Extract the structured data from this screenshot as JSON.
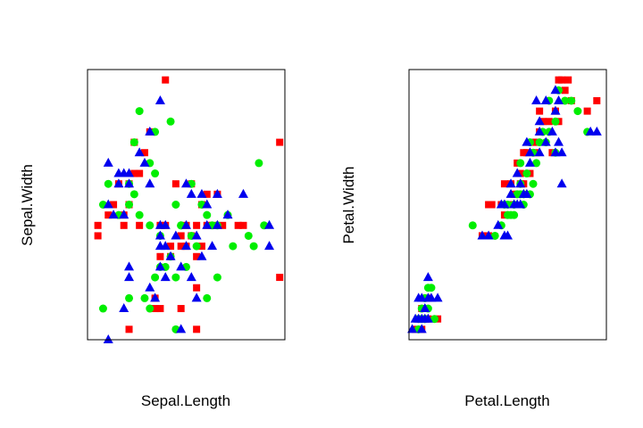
{
  "colors": {
    "red": "#ff0000",
    "green": "#00ee00",
    "blue": "#0000ee"
  },
  "chart_data": [
    {
      "type": "scatter",
      "xlabel": "Sepal.Length",
      "ylabel": "Sepal.Width",
      "xlim": [
        4.2,
        8.0
      ],
      "ylim": [
        1.9,
        4.5
      ],
      "series": [
        {
          "color": "red",
          "shape": "square",
          "points": [
            [
              5.7,
              4.4
            ],
            [
              7.9,
              3.8
            ],
            [
              5.4,
              3.9
            ],
            [
              5.1,
              3.8
            ],
            [
              5.2,
              3.5
            ],
            [
              4.8,
              3.4
            ],
            [
              5.0,
              3.4
            ],
            [
              5.9,
              3.4
            ],
            [
              6.2,
              3.4
            ],
            [
              6.7,
              3.3
            ],
            [
              6.5,
              3.3
            ],
            [
              5.3,
              3.7
            ],
            [
              6.4,
              3.2
            ],
            [
              5.0,
              3.2
            ],
            [
              4.6,
              3.1
            ],
            [
              4.9,
              3.1
            ],
            [
              6.1,
              3.0
            ],
            [
              6.3,
              3.0
            ],
            [
              6.5,
              3.0
            ],
            [
              4.4,
              3.0
            ],
            [
              4.4,
              2.9
            ],
            [
              5.7,
              3.0
            ],
            [
              6.0,
              2.9
            ],
            [
              6.2,
              2.9
            ],
            [
              6.8,
              3.0
            ],
            [
              7.1,
              3.0
            ],
            [
              5.8,
              2.8
            ],
            [
              6.0,
              2.8
            ],
            [
              6.4,
              2.8
            ],
            [
              7.2,
              3.0
            ],
            [
              5.6,
              2.7
            ],
            [
              5.8,
              2.7
            ],
            [
              6.3,
              2.7
            ],
            [
              7.9,
              2.5
            ],
            [
              6.3,
              2.4
            ],
            [
              5.5,
              2.3
            ],
            [
              5.5,
              2.2
            ],
            [
              5.0,
              2.0
            ],
            [
              6.3,
              2.0
            ],
            [
              6.0,
              2.2
            ],
            [
              4.9,
              3.0
            ],
            [
              5.2,
              3.0
            ],
            [
              4.7,
              3.2
            ],
            [
              5.1,
              3.5
            ],
            [
              5.6,
              3.0
            ],
            [
              6.6,
              3.0
            ],
            [
              5.6,
              2.2
            ],
            [
              6.1,
              2.8
            ]
          ]
        },
        {
          "color": "green",
          "shape": "circle",
          "points": [
            [
              5.2,
              4.1
            ],
            [
              5.8,
              4.0
            ],
            [
              5.5,
              3.9
            ],
            [
              5.1,
              3.8
            ],
            [
              7.5,
              3.6
            ],
            [
              5.4,
              3.6
            ],
            [
              4.6,
              3.4
            ],
            [
              5.0,
              3.4
            ],
            [
              5.5,
              3.5
            ],
            [
              5.1,
              3.3
            ],
            [
              6.2,
              3.4
            ],
            [
              4.5,
              3.2
            ],
            [
              6.4,
              3.2
            ],
            [
              5.0,
              3.2
            ],
            [
              4.8,
              3.1
            ],
            [
              6.5,
              3.1
            ],
            [
              6.9,
              3.1
            ],
            [
              5.2,
              3.1
            ],
            [
              5.4,
              3.0
            ],
            [
              6.0,
              3.0
            ],
            [
              6.7,
              3.0
            ],
            [
              7.3,
              2.9
            ],
            [
              7.6,
              3.0
            ],
            [
              5.6,
              2.9
            ],
            [
              6.2,
              2.9
            ],
            [
              5.8,
              2.7
            ],
            [
              6.3,
              2.8
            ],
            [
              7.0,
              2.8
            ],
            [
              7.4,
              2.8
            ],
            [
              5.6,
              2.6
            ],
            [
              6.1,
              2.6
            ],
            [
              6.7,
              2.5
            ],
            [
              5.9,
              2.5
            ],
            [
              5.5,
              2.5
            ],
            [
              5.0,
              2.3
            ],
            [
              5.3,
              2.3
            ],
            [
              6.5,
              2.3
            ],
            [
              4.5,
              2.2
            ],
            [
              5.4,
              2.2
            ],
            [
              5.9,
              2.0
            ],
            [
              6.0,
              3.0
            ],
            [
              5.9,
              3.2
            ],
            [
              6.6,
              3.0
            ],
            [
              5.7,
              2.6
            ]
          ]
        },
        {
          "color": "blue",
          "shape": "triangle",
          "points": [
            [
              5.6,
              4.2
            ],
            [
              5.4,
              3.9
            ],
            [
              5.2,
              3.7
            ],
            [
              5.3,
              3.6
            ],
            [
              4.6,
              3.6
            ],
            [
              4.8,
              3.5
            ],
            [
              4.9,
              3.5
            ],
            [
              5.0,
              3.5
            ],
            [
              4.8,
              3.4
            ],
            [
              5.0,
              3.4
            ],
            [
              5.4,
              3.4
            ],
            [
              6.1,
              3.4
            ],
            [
              6.2,
              3.3
            ],
            [
              6.7,
              3.3
            ],
            [
              6.4,
              3.3
            ],
            [
              7.2,
              3.3
            ],
            [
              4.6,
              3.2
            ],
            [
              4.7,
              3.1
            ],
            [
              6.5,
              3.2
            ],
            [
              6.9,
              3.1
            ],
            [
              4.9,
              3.1
            ],
            [
              5.6,
              3.0
            ],
            [
              5.7,
              3.0
            ],
            [
              6.5,
              3.0
            ],
            [
              7.7,
              3.0
            ],
            [
              6.1,
              3.0
            ],
            [
              6.3,
              2.9
            ],
            [
              5.6,
              2.9
            ],
            [
              5.9,
              2.9
            ],
            [
              6.7,
              3.0
            ],
            [
              5.6,
              2.8
            ],
            [
              6.1,
              2.8
            ],
            [
              6.4,
              2.7
            ],
            [
              5.8,
              2.7
            ],
            [
              6.6,
              2.8
            ],
            [
              7.7,
              2.8
            ],
            [
              5.0,
              2.6
            ],
            [
              5.6,
              2.6
            ],
            [
              6.0,
              2.6
            ],
            [
              5.7,
              2.5
            ],
            [
              6.2,
              2.5
            ],
            [
              5.4,
              2.4
            ],
            [
              5.5,
              2.3
            ],
            [
              6.3,
              2.3
            ],
            [
              4.9,
              2.2
            ],
            [
              6.0,
              2.0
            ],
            [
              5.0,
              2.5
            ],
            [
              4.6,
              1.9
            ],
            [
              5.7,
              2.8
            ]
          ]
        }
      ]
    },
    {
      "type": "scatter",
      "xlabel": "Petal.Length",
      "ylabel": "Petal.Width",
      "xlim": [
        1.0,
        7.2
      ],
      "ylim": [
        0.0,
        2.6
      ],
      "series": [
        {
          "color": "red",
          "shape": "square",
          "points": [
            [
              1.2,
              0.1
            ],
            [
              1.4,
              0.1
            ],
            [
              1.6,
              0.2
            ],
            [
              1.5,
              0.2
            ],
            [
              1.9,
              0.2
            ],
            [
              1.4,
              0.3
            ],
            [
              1.6,
              0.4
            ],
            [
              1.5,
              0.4
            ],
            [
              1.3,
              0.2
            ],
            [
              3.3,
              1.0
            ],
            [
              3.5,
              1.0
            ],
            [
              3.6,
              1.3
            ],
            [
              3.9,
              1.3
            ],
            [
              4.0,
              1.2
            ],
            [
              4.1,
              1.3
            ],
            [
              3.3,
              1.0
            ],
            [
              4.2,
              1.5
            ],
            [
              4.5,
              1.5
            ],
            [
              4.4,
              1.4
            ],
            [
              4.6,
              1.5
            ],
            [
              4.3,
              1.4
            ],
            [
              4.2,
              1.3
            ],
            [
              4.5,
              1.6
            ],
            [
              4.7,
              1.8
            ],
            [
              4.6,
              1.8
            ],
            [
              5.0,
              1.8
            ],
            [
              4.9,
              1.9
            ],
            [
              5.0,
              1.9
            ],
            [
              5.1,
              2.0
            ],
            [
              5.2,
              2.1
            ],
            [
              5.4,
              2.1
            ],
            [
              5.1,
              2.2
            ],
            [
              5.5,
              1.8
            ],
            [
              5.7,
              2.1
            ],
            [
              5.6,
              2.2
            ],
            [
              6.1,
              2.3
            ],
            [
              5.9,
              2.4
            ],
            [
              6.6,
              2.2
            ],
            [
              6.9,
              2.3
            ],
            [
              5.8,
              2.5
            ],
            [
              5.7,
              2.5
            ],
            [
              6.0,
              2.5
            ],
            [
              4.0,
              1.5
            ],
            [
              4.8,
              1.6
            ],
            [
              4.4,
              1.7
            ],
            [
              3.5,
              1.3
            ]
          ]
        },
        {
          "color": "green",
          "shape": "circle",
          "points": [
            [
              1.4,
              0.2
            ],
            [
              1.5,
              0.2
            ],
            [
              1.3,
              0.1
            ],
            [
              1.6,
              0.5
            ],
            [
              1.7,
              0.5
            ],
            [
              1.6,
              0.3
            ],
            [
              1.5,
              0.4
            ],
            [
              1.4,
              0.3
            ],
            [
              1.3,
              0.2
            ],
            [
              3.0,
              1.1
            ],
            [
              3.9,
              1.1
            ],
            [
              3.7,
              1.0
            ],
            [
              4.3,
              1.2
            ],
            [
              4.1,
              1.2
            ],
            [
              4.3,
              1.3
            ],
            [
              4.4,
              1.4
            ],
            [
              4.5,
              1.4
            ],
            [
              4.6,
              1.4
            ],
            [
              4.1,
              1.3
            ],
            [
              4.0,
              1.3
            ],
            [
              4.8,
              1.4
            ],
            [
              4.9,
              1.5
            ],
            [
              4.5,
              1.5
            ],
            [
              4.7,
              1.6
            ],
            [
              4.5,
              1.7
            ],
            [
              4.9,
              1.8
            ],
            [
              5.0,
              1.7
            ],
            [
              4.8,
              1.9
            ],
            [
              5.1,
              1.9
            ],
            [
              5.3,
              1.9
            ],
            [
              5.4,
              2.0
            ],
            [
              5.6,
              1.8
            ],
            [
              6.6,
              2.0
            ],
            [
              5.6,
              2.1
            ],
            [
              6.3,
              2.2
            ],
            [
              5.9,
              2.3
            ],
            [
              6.1,
              2.3
            ],
            [
              5.7,
              2.4
            ],
            [
              5.4,
              2.3
            ],
            [
              5.2,
              2.0
            ],
            [
              4.2,
              1.2
            ],
            [
              4.6,
              1.3
            ],
            [
              1.5,
              0.2
            ],
            [
              1.8,
              0.2
            ]
          ]
        },
        {
          "color": "blue",
          "shape": "triangle",
          "points": [
            [
              1.3,
              0.2
            ],
            [
              1.4,
              0.2
            ],
            [
              1.5,
              0.2
            ],
            [
              1.6,
              0.2
            ],
            [
              1.2,
              0.2
            ],
            [
              1.5,
              0.3
            ],
            [
              1.7,
              0.4
            ],
            [
              1.4,
              0.4
            ],
            [
              1.3,
              0.4
            ],
            [
              1.6,
              0.4
            ],
            [
              1.1,
              0.1
            ],
            [
              1.4,
              0.1
            ],
            [
              1.9,
              0.4
            ],
            [
              1.6,
              0.6
            ],
            [
              3.5,
              1.0
            ],
            [
              3.8,
              1.1
            ],
            [
              4.0,
              1.0
            ],
            [
              3.3,
              1.0
            ],
            [
              4.0,
              1.3
            ],
            [
              3.9,
              1.3
            ],
            [
              4.3,
              1.3
            ],
            [
              4.4,
              1.3
            ],
            [
              4.2,
              1.4
            ],
            [
              4.5,
              1.3
            ],
            [
              4.7,
              1.4
            ],
            [
              4.6,
              1.4
            ],
            [
              4.5,
              1.5
            ],
            [
              4.2,
              1.5
            ],
            [
              4.4,
              1.6
            ],
            [
              4.8,
              1.8
            ],
            [
              4.7,
              1.9
            ],
            [
              5.1,
              1.8
            ],
            [
              5.1,
              2.0
            ],
            [
              5.3,
              1.9
            ],
            [
              5.6,
              1.8
            ],
            [
              5.7,
              1.9
            ],
            [
              5.8,
              1.8
            ],
            [
              5.1,
              2.1
            ],
            [
              5.5,
              2.0
            ],
            [
              5.3,
              2.3
            ],
            [
              5.7,
              2.3
            ],
            [
              6.7,
              2.0
            ],
            [
              6.9,
              2.0
            ],
            [
              5.8,
              1.5
            ],
            [
              5.6,
              2.4
            ],
            [
              5.0,
              2.3
            ],
            [
              5.6,
              2.2
            ],
            [
              4.1,
              1.0
            ],
            [
              4.8,
              1.7
            ]
          ]
        }
      ]
    }
  ]
}
